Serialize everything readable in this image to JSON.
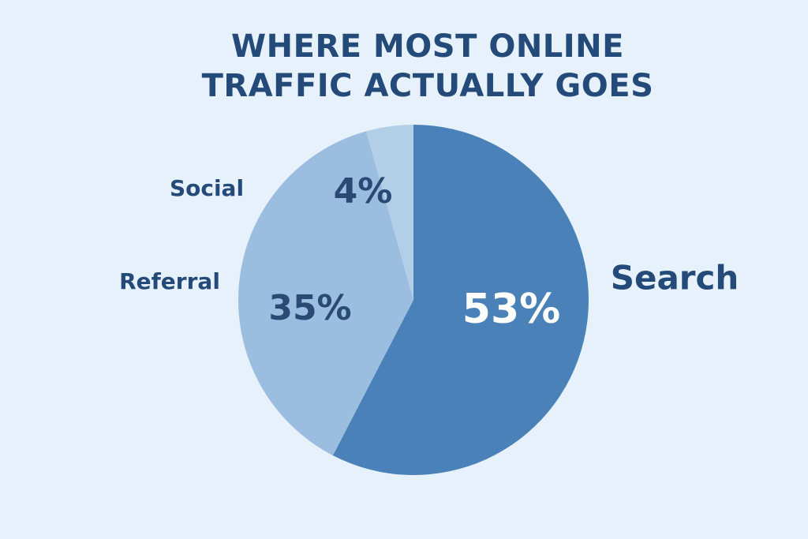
{
  "chart_data": {
    "type": "pie",
    "title": "WHERE MOST ONLINE TRAFFIC ACTUALLY GOES",
    "categories": [
      "Search",
      "Referral",
      "Social"
    ],
    "values": [
      53,
      35,
      4
    ],
    "value_labels": [
      "53%",
      "35%",
      "4%"
    ],
    "colors": [
      "#4a81b8",
      "#9bbde0",
      "#b3cfe8"
    ]
  }
}
